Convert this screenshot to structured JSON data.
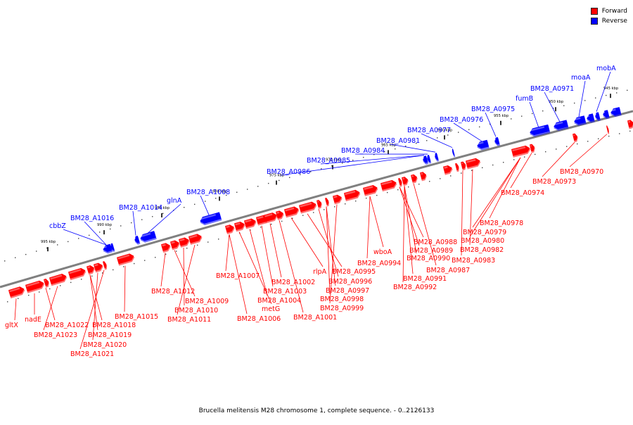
{
  "legend": {
    "forward": {
      "label": "Forward",
      "color": "#ff0000"
    },
    "reverse": {
      "label": "Reverse",
      "color": "#0000ff"
    }
  },
  "caption": "Brucella melitensis M28 chromosome 1, complete sequence. - 0..2126133",
  "colors": {
    "forward": "#ff0000",
    "reverse": "#0000ff",
    "backbone": "#808080"
  },
  "scale_ticks": [
    "995 kbp",
    "990 kbp",
    "985 kbp",
    "980 kbp",
    "975 kbp",
    "970 kbp",
    "965 kbp",
    "960 kbp",
    "955 kbp",
    "950 kbp",
    "945 kbp"
  ],
  "reverse_genes": [
    "cbbZ",
    "BM28_A1016",
    "BM28_A1014",
    "glnA",
    "BM28_A1008",
    "BM28_A0986",
    "BM28_A0985",
    "BM28_A0984",
    "BM28_A0981",
    "BM28_A0977",
    "BM28_A0976",
    "BM28_A0975",
    "fumB",
    "BM28_A0971",
    "moaA",
    "mobA"
  ],
  "forward_genes": [
    "gltX",
    "nadE",
    "BM28_A1022",
    "BM28_A1023",
    "BM28_A1018",
    "BM28_A1019",
    "BM28_A1020",
    "BM28_A1021",
    "BM28_A1015",
    "BM28_A1012",
    "BM28_A1009",
    "BM28_A1010",
    "BM28_A1011",
    "BM28_A1007",
    "BM28_A1006",
    "metG",
    "BM28_A1004",
    "BM28_A1003",
    "BM28_A1002",
    "BM28_A1001",
    "rlpA",
    "BM28_A0995",
    "BM28_A0996",
    "BM28_A0997",
    "BM28_A0998",
    "BM28_A0999",
    "wboA",
    "BM28_A0994",
    "BM28_A0988",
    "BM28_A0989",
    "BM28_A0990",
    "BM28_A0991",
    "BM28_A0992",
    "BM28_A0987",
    "BM28_A0979",
    "BM28_A0978",
    "BM28_A0980",
    "BM28_A0982",
    "BM28_A0983",
    "BM28_A0974",
    "BM28_A0973",
    "BM28_A0970"
  ]
}
